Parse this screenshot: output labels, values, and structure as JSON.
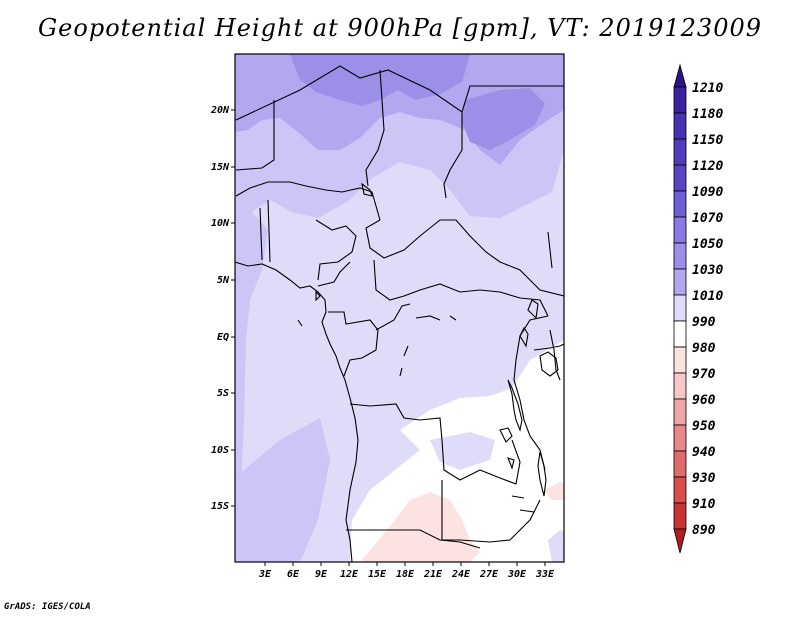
{
  "title": "Geopotential Height at 900hPa [gpm], VT: 2019123009",
  "credit": "GrADS: IGES/COLA",
  "map": {
    "lat_ticks": [
      "20N",
      "15N",
      "10N",
      "5N",
      "EQ",
      "5S",
      "10S",
      "15S"
    ],
    "lon_ticks": [
      "3E",
      "6E",
      "9E",
      "12E",
      "15E",
      "18E",
      "21E",
      "24E",
      "27E",
      "30E",
      "33E"
    ]
  },
  "colorbar": {
    "levels": [
      "1210",
      "1180",
      "1150",
      "1120",
      "1090",
      "1070",
      "1050",
      "1030",
      "1010",
      "990",
      "980",
      "970",
      "960",
      "950",
      "940",
      "930",
      "910",
      "890"
    ],
    "colors": {
      "c1": "#2c1488",
      "c2": "#3a22a0",
      "c3": "#4632b0",
      "c4": "#5844c4",
      "c5": "#6d5fd6",
      "c6": "#8879e3",
      "c7": "#9c8fe8",
      "c8": "#b1a8f0",
      "c9": "#cbc6f5",
      "c10": "#dedcf8",
      "c11": "#ffffff",
      "c12": "#fde2e2",
      "c13": "#f8c8c8",
      "c14": "#f0a6a6",
      "c15": "#e88888",
      "c16": "#e06a6a",
      "c17": "#d84e4e",
      "c18": "#c83232",
      "c19": "#b01e1e"
    }
  }
}
